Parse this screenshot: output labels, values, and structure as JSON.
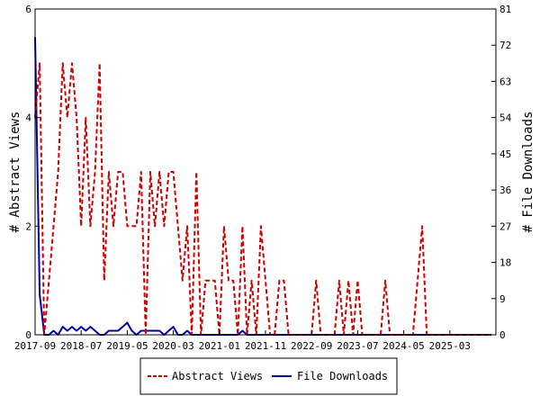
{
  "chart_data": {
    "type": "line",
    "title": "",
    "ylabel_left": "# Abstract Views",
    "ylabel_right": "# File Downloads",
    "ylim_left": [
      0,
      6
    ],
    "ylim_right": [
      0,
      81
    ],
    "yticks_left": [
      0,
      2,
      4,
      6
    ],
    "yticks_right": [
      0,
      9,
      18,
      27,
      36,
      45,
      54,
      63,
      72,
      81
    ],
    "xlim": [
      "2017-09",
      "2026-01"
    ],
    "xticks": [
      "2017-09",
      "2018-07",
      "2019-05",
      "2020-03",
      "2021-01",
      "2021-11",
      "2022-09",
      "2023-07",
      "2024-05",
      "2025-03"
    ],
    "grid": false,
    "legend_position": "bottom",
    "series": [
      {
        "name": "Abstract Views",
        "axis": "left",
        "color": "#cc0000",
        "style": "dashed",
        "x": [
          "2017-09",
          "2017-10",
          "2017-11",
          "2017-12",
          "2018-01",
          "2018-02",
          "2018-03",
          "2018-04",
          "2018-05",
          "2018-06",
          "2018-07",
          "2018-08",
          "2018-09",
          "2018-10",
          "2018-11",
          "2018-12",
          "2019-01",
          "2019-02",
          "2019-03",
          "2019-04",
          "2019-05",
          "2019-06",
          "2019-07",
          "2019-08",
          "2019-09",
          "2019-10",
          "2019-11",
          "2019-12",
          "2020-01",
          "2020-02",
          "2020-03",
          "2020-04",
          "2020-05",
          "2020-06",
          "2020-07",
          "2020-08",
          "2020-09",
          "2020-10",
          "2020-11",
          "2020-12",
          "2021-01",
          "2021-02",
          "2021-03",
          "2021-04",
          "2021-05",
          "2021-06",
          "2021-07",
          "2021-08",
          "2021-09",
          "2021-10",
          "2021-11",
          "2021-12",
          "2022-01",
          "2022-02",
          "2022-03",
          "2022-04",
          "2022-05",
          "2022-06",
          "2022-07",
          "2022-08",
          "2022-09",
          "2022-10",
          "2022-11",
          "2022-12",
          "2023-01",
          "2023-02",
          "2023-03",
          "2023-04",
          "2023-05",
          "2023-06",
          "2023-07",
          "2023-08",
          "2023-09",
          "2023-10",
          "2023-11",
          "2023-12",
          "2024-01",
          "2024-02",
          "2024-03",
          "2024-04",
          "2024-05",
          "2024-06",
          "2024-07",
          "2024-08",
          "2024-09",
          "2024-10",
          "2024-11",
          "2024-12",
          "2025-01",
          "2025-02",
          "2025-03",
          "2025-04",
          "2025-05",
          "2025-06",
          "2025-07",
          "2025-08",
          "2025-09",
          "2025-10",
          "2025-11",
          "2025-12"
        ],
        "values": [
          4,
          5,
          0,
          1,
          2,
          3,
          5,
          4,
          5,
          4,
          2,
          4,
          2,
          3,
          5,
          1,
          3,
          2,
          3,
          3,
          2,
          2,
          2,
          3,
          0,
          3,
          2,
          3,
          2,
          3,
          3,
          2,
          1,
          2,
          0,
          3,
          0,
          1,
          1,
          1,
          0,
          2,
          1,
          1,
          0,
          2,
          0,
          1,
          0,
          2,
          1,
          0,
          0,
          1,
          1,
          0,
          0,
          0,
          0,
          0,
          0,
          1,
          0,
          0,
          0,
          0,
          1,
          0,
          1,
          0,
          1,
          0,
          0,
          0,
          0,
          0,
          1,
          0,
          0,
          0,
          0,
          0,
          0,
          1,
          2,
          0,
          0,
          0,
          0,
          0,
          0,
          0,
          0,
          0,
          0,
          0,
          0,
          0,
          0,
          0
        ]
      },
      {
        "name": "File Downloads",
        "axis": "right",
        "color": "#0000aa",
        "style": "solid",
        "x": [
          "2017-09",
          "2017-10",
          "2017-11",
          "2017-12",
          "2018-01",
          "2018-02",
          "2018-03",
          "2018-04",
          "2018-05",
          "2018-06",
          "2018-07",
          "2018-08",
          "2018-09",
          "2018-10",
          "2018-11",
          "2018-12",
          "2019-01",
          "2019-02",
          "2019-03",
          "2019-04",
          "2019-05",
          "2019-06",
          "2019-07",
          "2019-08",
          "2019-09",
          "2019-10",
          "2019-11",
          "2019-12",
          "2020-01",
          "2020-02",
          "2020-03",
          "2020-04",
          "2020-05",
          "2020-06",
          "2020-07",
          "2020-08",
          "2020-09",
          "2020-10",
          "2020-11",
          "2020-12",
          "2021-01",
          "2021-02",
          "2021-03",
          "2021-04",
          "2021-05",
          "2021-06",
          "2021-07",
          "2021-08",
          "2021-09",
          "2021-10",
          "2021-11",
          "2021-12",
          "2022-01",
          "2022-02",
          "2022-03",
          "2022-04",
          "2022-05",
          "2022-06",
          "2022-07",
          "2022-08",
          "2022-09",
          "2022-10",
          "2022-11",
          "2022-12",
          "2023-01",
          "2023-02",
          "2023-03",
          "2023-04",
          "2023-05",
          "2023-06",
          "2023-07",
          "2023-08",
          "2023-09",
          "2023-10",
          "2023-11",
          "2023-12",
          "2024-01",
          "2024-02",
          "2024-03",
          "2024-04",
          "2024-05",
          "2024-06",
          "2024-07",
          "2024-08",
          "2024-09",
          "2024-10",
          "2024-11",
          "2024-12",
          "2025-01",
          "2025-02",
          "2025-03",
          "2025-04",
          "2025-05",
          "2025-06",
          "2025-07",
          "2025-08",
          "2025-09",
          "2025-10",
          "2025-11",
          "2025-12"
        ],
        "values": [
          74,
          10,
          0,
          0,
          1,
          0,
          2,
          1,
          2,
          1,
          2,
          1,
          2,
          1,
          0,
          0,
          1,
          1,
          1,
          2,
          3,
          1,
          0,
          1,
          1,
          1,
          1,
          1,
          0,
          1,
          2,
          0,
          0,
          1,
          0,
          0,
          0,
          0,
          0,
          0,
          0,
          0,
          0,
          0,
          0,
          1,
          0,
          0,
          0,
          0,
          0,
          0,
          0,
          0,
          0,
          0,
          0,
          0,
          0,
          0,
          0,
          0,
          0,
          0,
          0,
          0,
          0,
          0,
          0,
          0,
          0,
          0,
          0,
          0,
          0,
          0,
          0,
          0,
          0,
          0,
          0,
          0,
          0,
          0,
          0,
          0,
          0,
          0,
          0,
          0,
          0,
          0,
          0,
          0,
          0,
          0,
          0,
          0,
          0,
          0
        ]
      }
    ]
  }
}
